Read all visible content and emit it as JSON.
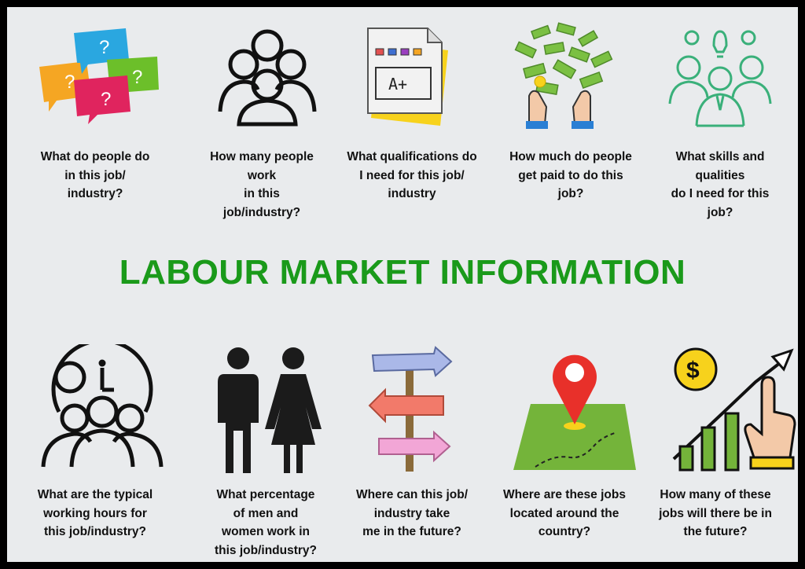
{
  "title": "LABOUR MARKET INFORMATION",
  "colors": {
    "title": "#1a9a1a",
    "background": "#e9ebed",
    "frame": "#000000"
  },
  "top_row": [
    {
      "icon": "speech-bubbles-icon",
      "caption": "What do people do\nin this job/\nindustry?"
    },
    {
      "icon": "people-group-icon",
      "caption": "How many people\nwork\nin this\njob/industry?"
    },
    {
      "icon": "document-grade-icon",
      "caption": "What qualifications do\nI need for this job/\nindustry"
    },
    {
      "icon": "money-hands-icon",
      "caption": "How much do people\nget paid to do this\njob?"
    },
    {
      "icon": "team-ideas-icon",
      "caption": "What skills and\nqualities\ndo I need for this\njob?"
    }
  ],
  "bottom_row": [
    {
      "icon": "clock-people-icon",
      "caption": "What are the typical\nworking hours for\nthis job/industry?"
    },
    {
      "icon": "man-woman-icon",
      "caption": "What percentage\nof men and\nwomen work in\nthis job/industry?"
    },
    {
      "icon": "signpost-icon",
      "caption": "Where can this job/\nindustry take\nme in the future?"
    },
    {
      "icon": "map-pin-icon",
      "caption": "Where are these jobs\nlocated around the\ncountry?"
    },
    {
      "icon": "growth-chart-icon",
      "caption": "How many of these\njobs will there be in\nthe future?"
    }
  ]
}
